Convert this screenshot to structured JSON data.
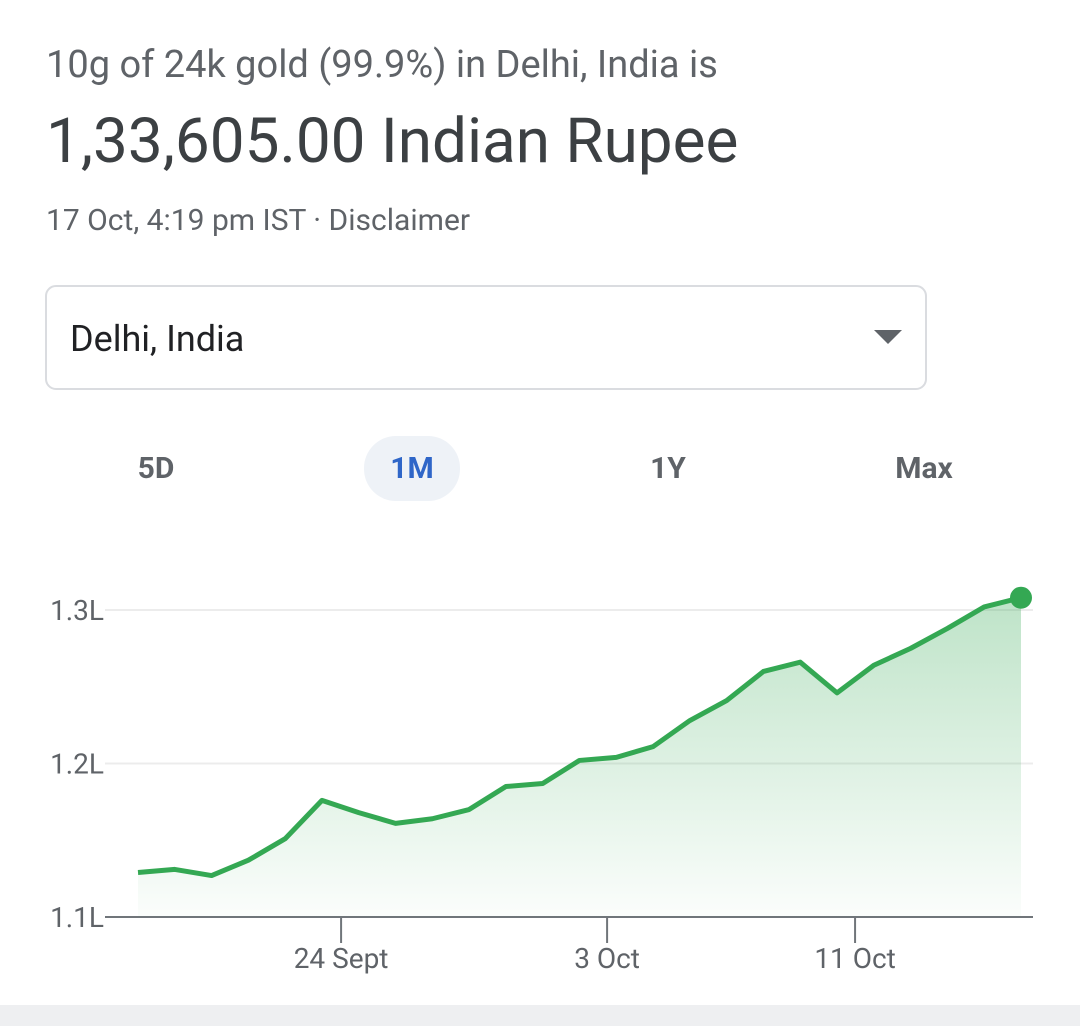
{
  "header": {
    "subtitle": "10g of 24k gold (99.9%) in Delhi, India is",
    "price": "1,33,605.00 Indian Rupee",
    "timestamp": "17 Oct, 4:19 pm IST · Disclaimer"
  },
  "location_select": {
    "value": "Delhi, India"
  },
  "range_tabs": {
    "tabs": [
      "5D",
      "1M",
      "1Y",
      "Max"
    ],
    "selected": "1M"
  },
  "chart_data": {
    "type": "line",
    "color": "#34a853",
    "x": [
      0,
      1,
      2,
      3,
      4,
      5,
      6,
      7,
      8,
      9,
      10,
      11,
      12,
      13,
      14,
      15,
      16,
      17,
      18,
      19,
      20,
      21,
      22,
      23,
      24
    ],
    "values": [
      112900,
      113100,
      112700,
      113700,
      115100,
      117600,
      116800,
      116100,
      116400,
      117000,
      118500,
      118700,
      120200,
      120400,
      121100,
      122800,
      124100,
      126000,
      126600,
      124600,
      126400,
      127500,
      128800,
      130200,
      130800
    ],
    "xlim": [
      0,
      24
    ],
    "xticks": [
      {
        "value": 5.52,
        "label": "24 Sept"
      },
      {
        "value": 12.75,
        "label": "3 Oct"
      },
      {
        "value": 19.49,
        "label": "11 Oct"
      }
    ],
    "ylim": [
      110000,
      130000
    ],
    "yticks": [
      {
        "value": 110000,
        "label": "1.1L"
      },
      {
        "value": 120000,
        "label": "1.2L"
      },
      {
        "value": 130000,
        "label": "1.3L"
      }
    ],
    "grid": true
  }
}
